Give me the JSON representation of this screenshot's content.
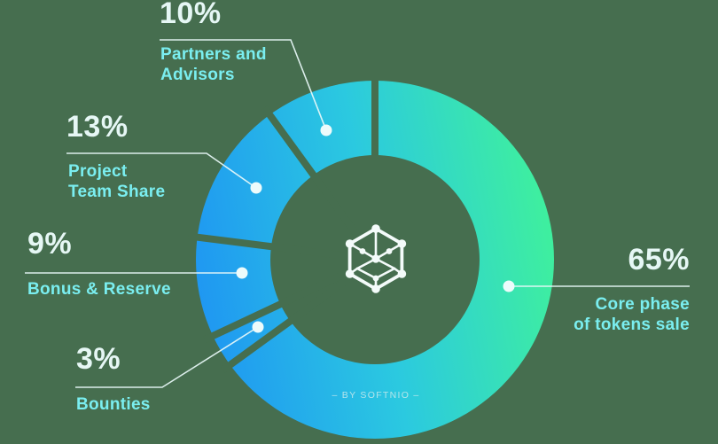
{
  "page": {
    "background_color": "#466e4f"
  },
  "colors": {
    "gradient_blue": "#1f97f2",
    "gradient_cyan": "#2bc9e0",
    "gradient_green": "#3ff09d",
    "percent_text": "#e6f7f5",
    "label_text": "#7aeef0",
    "leader_line": "#e9f8f8",
    "marker": "#edfbfb",
    "icon": "#f4fbfa",
    "watermark_text": "#d7edee"
  },
  "chart_data": {
    "type": "pie",
    "subtype": "donut",
    "title": "",
    "order": "clockwise-from-top",
    "start_angle_deg": 0,
    "inner_radius_ratio": 0.58,
    "gradient": [
      "#1f97f2",
      "#2bc9e0",
      "#3ff09d"
    ],
    "watermark": "– BY SOFTNIO –",
    "center_icon": "hexagon-cube-network",
    "legend_position": "callout-labels",
    "slices": [
      {
        "id": "core",
        "value": 65,
        "percent_label": "65%",
        "label": "Core phase\nof tokens sale"
      },
      {
        "id": "bounties",
        "value": 3,
        "percent_label": "3%",
        "label": "Bounties"
      },
      {
        "id": "bonus",
        "value": 9,
        "percent_label": "9%",
        "label": "Bonus & Reserve"
      },
      {
        "id": "team",
        "value": 13,
        "percent_label": "13%",
        "label": "Project\nTeam Share"
      },
      {
        "id": "partners",
        "value": 10,
        "percent_label": "10%",
        "label": "Partners and\nAdvisors"
      }
    ]
  }
}
